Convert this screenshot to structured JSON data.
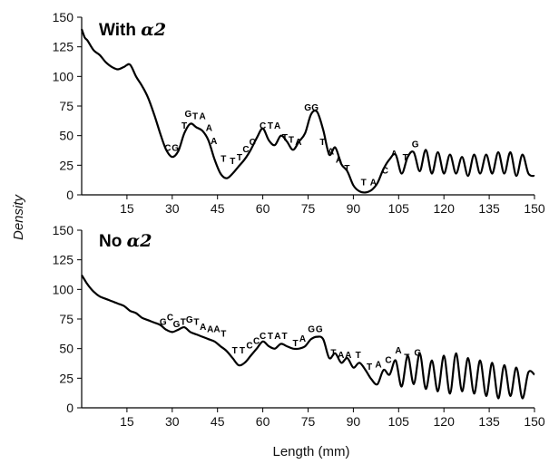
{
  "chart_data": [
    {
      "type": "line",
      "title_main": "With ",
      "title_greek": "α2",
      "xlabel": "",
      "ylabel": "",
      "xlim": [
        0,
        150
      ],
      "ylim": [
        0,
        150
      ],
      "yticks": [
        0,
        25,
        50,
        75,
        100,
        125,
        150
      ],
      "xticks": [
        15,
        30,
        45,
        60,
        75,
        90,
        105,
        120,
        135,
        150
      ],
      "grid": false,
      "series": [
        {
          "x": [
            0,
            1,
            2,
            4,
            6,
            8,
            10,
            12,
            14,
            16,
            18,
            20,
            22,
            24,
            26,
            28,
            30,
            32,
            34,
            36,
            38,
            40,
            42,
            44,
            46,
            48,
            50,
            52,
            54,
            56,
            58,
            60,
            62,
            64,
            66,
            68,
            70,
            72,
            74,
            76,
            78,
            80,
            82,
            84,
            86,
            88,
            90,
            92,
            94,
            96,
            98,
            100,
            102,
            104,
            106,
            108,
            110,
            112,
            114,
            116,
            118,
            120,
            122,
            124,
            126,
            128,
            130,
            132,
            134,
            136,
            138,
            140,
            142,
            144,
            146,
            148,
            150
          ],
          "values": [
            140,
            133,
            130,
            122,
            118,
            112,
            108,
            106,
            108,
            110,
            100,
            92,
            82,
            68,
            52,
            38,
            32,
            37,
            52,
            60,
            57,
            54,
            46,
            30,
            18,
            14,
            18,
            24,
            30,
            38,
            48,
            56,
            46,
            42,
            50,
            45,
            38,
            45,
            52,
            68,
            70,
            55,
            34,
            40,
            26,
            20,
            8,
            3,
            2,
            4,
            10,
            22,
            30,
            34,
            18,
            32,
            36,
            20,
            38,
            18,
            36,
            18,
            34,
            18,
            32,
            16,
            34,
            18,
            34,
            18,
            36,
            18,
            36,
            16,
            34,
            18,
            16
          ]
        }
      ],
      "bases": [
        {
          "x": 28.5,
          "y": 37,
          "t": "C"
        },
        {
          "x": 31.0,
          "y": 37,
          "t": "G"
        },
        {
          "x": 34.0,
          "y": 56,
          "t": "T"
        },
        {
          "x": 35.3,
          "y": 66,
          "t": "G"
        },
        {
          "x": 37.6,
          "y": 64,
          "t": "T"
        },
        {
          "x": 40.0,
          "y": 64,
          "t": "A"
        },
        {
          "x": 42.2,
          "y": 54,
          "t": "A"
        },
        {
          "x": 43.8,
          "y": 43,
          "t": "A"
        },
        {
          "x": 47.0,
          "y": 28,
          "t": "T"
        },
        {
          "x": 50.0,
          "y": 26,
          "t": "T"
        },
        {
          "x": 52.3,
          "y": 29,
          "t": "T"
        },
        {
          "x": 54.4,
          "y": 36,
          "t": "C"
        },
        {
          "x": 56.6,
          "y": 42,
          "t": "C"
        },
        {
          "x": 60.0,
          "y": 56,
          "t": "C"
        },
        {
          "x": 62.5,
          "y": 56,
          "t": "T"
        },
        {
          "x": 64.8,
          "y": 56,
          "t": "A"
        },
        {
          "x": 67.3,
          "y": 46,
          "t": "T"
        },
        {
          "x": 69.4,
          "y": 44,
          "t": "T"
        },
        {
          "x": 71.8,
          "y": 42,
          "t": "A"
        },
        {
          "x": 74.9,
          "y": 71,
          "t": "G"
        },
        {
          "x": 77.3,
          "y": 71,
          "t": "G"
        },
        {
          "x": 79.8,
          "y": 42,
          "t": "T"
        },
        {
          "x": 82.5,
          "y": 34,
          "t": "A"
        },
        {
          "x": 85.2,
          "y": 27,
          "t": "A"
        },
        {
          "x": 87.9,
          "y": 20,
          "t": "T"
        },
        {
          "x": 93.4,
          "y": 8,
          "t": "T"
        },
        {
          "x": 96.6,
          "y": 8,
          "t": "A"
        },
        {
          "x": 100.5,
          "y": 18,
          "t": "C"
        },
        {
          "x": 103.5,
          "y": 32,
          "t": "A"
        },
        {
          "x": 107.2,
          "y": 29,
          "t": "T"
        },
        {
          "x": 110.5,
          "y": 40,
          "t": "G"
        }
      ]
    },
    {
      "type": "line",
      "title_main": "No ",
      "title_greek": "α2",
      "xlabel": "Length (mm)",
      "ylabel": "Density",
      "xlim": [
        0,
        150
      ],
      "ylim": [
        0,
        150
      ],
      "yticks": [
        0,
        25,
        50,
        75,
        100,
        125,
        150
      ],
      "xticks": [
        15,
        30,
        45,
        60,
        75,
        90,
        105,
        120,
        135,
        150
      ],
      "grid": false,
      "series": [
        {
          "x": [
            0,
            1,
            2,
            4,
            6,
            8,
            10,
            12,
            14,
            16,
            18,
            20,
            22,
            24,
            26,
            28,
            30,
            32,
            34,
            36,
            38,
            40,
            42,
            44,
            46,
            48,
            50,
            52,
            54,
            56,
            58,
            60,
            62,
            64,
            66,
            68,
            70,
            72,
            74,
            76,
            78,
            80,
            82,
            84,
            86,
            88,
            90,
            92,
            94,
            96,
            98,
            100,
            102,
            104,
            106,
            108,
            110,
            112,
            114,
            116,
            118,
            120,
            122,
            124,
            126,
            128,
            130,
            132,
            134,
            136,
            138,
            140,
            142,
            144,
            146,
            148,
            150
          ],
          "values": [
            112,
            108,
            104,
            98,
            94,
            92,
            90,
            88,
            86,
            82,
            80,
            76,
            74,
            72,
            70,
            66,
            64,
            66,
            68,
            64,
            62,
            60,
            58,
            56,
            52,
            48,
            42,
            36,
            38,
            44,
            50,
            56,
            52,
            50,
            54,
            52,
            50,
            50,
            52,
            58,
            60,
            58,
            42,
            46,
            38,
            42,
            34,
            38,
            32,
            24,
            20,
            32,
            28,
            40,
            18,
            44,
            20,
            46,
            16,
            40,
            14,
            44,
            12,
            46,
            14,
            42,
            12,
            40,
            10,
            38,
            8,
            36,
            10,
            34,
            8,
            30,
            28
          ]
        }
      ],
      "bases": [
        {
          "x": 27.0,
          "y": 70,
          "t": "G"
        },
        {
          "x": 29.3,
          "y": 74,
          "t": "C"
        },
        {
          "x": 31.4,
          "y": 68,
          "t": "G"
        },
        {
          "x": 33.6,
          "y": 70,
          "t": "T"
        },
        {
          "x": 35.7,
          "y": 72,
          "t": "G"
        },
        {
          "x": 38.0,
          "y": 70,
          "t": "T"
        },
        {
          "x": 40.2,
          "y": 66,
          "t": "A"
        },
        {
          "x": 42.6,
          "y": 64,
          "t": "A"
        },
        {
          "x": 44.8,
          "y": 64,
          "t": "A"
        },
        {
          "x": 47.0,
          "y": 60,
          "t": "T"
        },
        {
          "x": 50.7,
          "y": 46,
          "t": "T"
        },
        {
          "x": 53.2,
          "y": 46,
          "t": "T"
        },
        {
          "x": 55.6,
          "y": 50,
          "t": "C"
        },
        {
          "x": 57.9,
          "y": 54,
          "t": "C"
        },
        {
          "x": 60.0,
          "y": 58,
          "t": "C"
        },
        {
          "x": 62.5,
          "y": 58,
          "t": "T"
        },
        {
          "x": 64.9,
          "y": 58,
          "t": "A"
        },
        {
          "x": 67.2,
          "y": 58,
          "t": "T"
        },
        {
          "x": 70.8,
          "y": 52,
          "t": "T"
        },
        {
          "x": 73.2,
          "y": 56,
          "t": "A"
        },
        {
          "x": 76.1,
          "y": 64,
          "t": "G"
        },
        {
          "x": 78.7,
          "y": 64,
          "t": "G"
        },
        {
          "x": 83.4,
          "y": 44,
          "t": "T"
        },
        {
          "x": 85.9,
          "y": 42,
          "t": "A"
        },
        {
          "x": 88.3,
          "y": 42,
          "t": "A"
        },
        {
          "x": 91.6,
          "y": 42,
          "t": "T"
        },
        {
          "x": 95.3,
          "y": 32,
          "t": "T"
        },
        {
          "x": 98.3,
          "y": 34,
          "t": "A"
        },
        {
          "x": 101.6,
          "y": 38,
          "t": "C"
        },
        {
          "x": 104.9,
          "y": 46,
          "t": "A"
        },
        {
          "x": 107.7,
          "y": 40,
          "t": "T"
        },
        {
          "x": 111.3,
          "y": 44,
          "t": "G"
        }
      ]
    }
  ]
}
